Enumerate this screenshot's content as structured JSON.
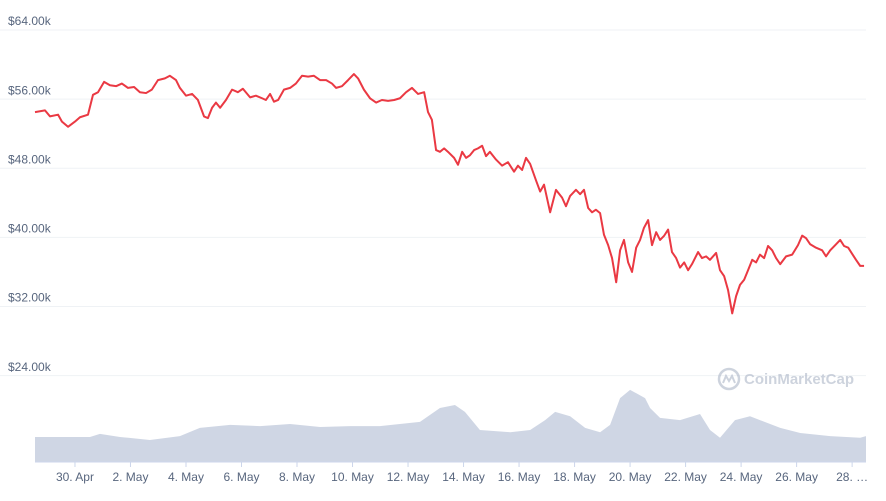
{
  "chart_data": {
    "type": "line",
    "watermark": "CoinMarketCap",
    "xlim": [
      -1.44,
      28.5
    ],
    "xticks": [
      {
        "value": 0,
        "label": "30. Apr"
      },
      {
        "value": 2,
        "label": "2. May"
      },
      {
        "value": 4,
        "label": "4. May"
      },
      {
        "value": 6,
        "label": "6. May"
      },
      {
        "value": 8,
        "label": "8. May"
      },
      {
        "value": 10,
        "label": "10. May"
      },
      {
        "value": 12,
        "label": "12. May"
      },
      {
        "value": 14,
        "label": "14. May"
      },
      {
        "value": 16,
        "label": "16. May"
      },
      {
        "value": 18,
        "label": "18. May"
      },
      {
        "value": 20,
        "label": "20. May"
      },
      {
        "value": 22,
        "label": "22. May"
      },
      {
        "value": 24,
        "label": "24. May"
      },
      {
        "value": 26,
        "label": "26. May"
      },
      {
        "value": 28,
        "label": "28. …"
      }
    ],
    "ylim": [
      14000,
      64000
    ],
    "yticks": [
      {
        "value": 24000,
        "label": "$24.00k"
      },
      {
        "value": 32000,
        "label": "$32.00k"
      },
      {
        "value": 40000,
        "label": "$40.00k"
      },
      {
        "value": 48000,
        "label": "$48.00k"
      },
      {
        "value": 56000,
        "label": "$56.00k"
      },
      {
        "value": 64000,
        "label": "$64.00k"
      }
    ],
    "grid": true,
    "x": [
      -1.44,
      -1.08,
      -0.9,
      -0.61,
      -0.47,
      -0.25,
      0,
      0.18,
      0.47,
      0.65,
      0.83,
      1.05,
      1.26,
      1.48,
      1.69,
      1.91,
      2.13,
      2.34,
      2.56,
      2.77,
      2.99,
      3.24,
      3.42,
      3.64,
      3.78,
      4.0,
      4.22,
      4.43,
      4.65,
      4.79,
      4.94,
      5.08,
      5.23,
      5.44,
      5.66,
      5.87,
      6.05,
      6.31,
      6.52,
      6.74,
      6.88,
      7.03,
      7.17,
      7.32,
      7.53,
      7.75,
      7.96,
      8.18,
      8.4,
      8.61,
      8.83,
      9.05,
      9.26,
      9.41,
      9.62,
      9.84,
      10.05,
      10.2,
      10.41,
      10.63,
      10.85,
      11.06,
      11.28,
      11.5,
      11.71,
      11.93,
      12.14,
      12.36,
      12.58,
      12.72,
      12.86,
      13.01,
      13.15,
      13.3,
      13.44,
      13.66,
      13.8,
      13.95,
      14.09,
      14.23,
      14.38,
      14.52,
      14.67,
      14.81,
      14.95,
      15.17,
      15.39,
      15.6,
      15.82,
      15.96,
      16.11,
      16.25,
      16.4,
      16.61,
      16.76,
      16.9,
      17.12,
      17.33,
      17.55,
      17.69,
      17.84,
      18.05,
      18.2,
      18.34,
      18.49,
      18.63,
      18.77,
      18.92,
      19.06,
      19.21,
      19.35,
      19.5,
      19.64,
      19.78,
      19.93,
      20.07,
      20.22,
      20.36,
      20.5,
      20.65,
      20.79,
      20.94,
      21.08,
      21.23,
      21.37,
      21.51,
      21.66,
      21.8,
      21.95,
      22.09,
      22.23,
      22.45,
      22.59,
      22.74,
      22.88,
      23.1,
      23.24,
      23.39,
      23.53,
      23.68,
      23.82,
      23.96,
      24.11,
      24.25,
      24.4,
      24.54,
      24.68,
      24.83,
      24.97,
      25.12,
      25.26,
      25.41,
      25.62,
      25.84,
      26.05,
      26.2,
      26.34,
      26.49,
      26.7,
      26.92,
      27.06,
      27.21,
      27.42,
      27.57,
      27.71,
      27.86,
      28.0,
      28.14,
      28.29,
      28.43
    ],
    "values": [
      54500,
      54700,
      54000,
      54200,
      53400,
      52800,
      53400,
      53900,
      54200,
      56500,
      56800,
      58000,
      57600,
      57500,
      57800,
      57300,
      57400,
      56800,
      56700,
      57100,
      58200,
      58400,
      58700,
      58200,
      57300,
      56400,
      56600,
      55900,
      54000,
      53800,
      55000,
      55600,
      55000,
      55900,
      57100,
      56800,
      57200,
      56200,
      56400,
      56100,
      55900,
      56600,
      55700,
      55900,
      57100,
      57300,
      57800,
      58700,
      58600,
      58700,
      58200,
      58200,
      57800,
      57300,
      57500,
      58200,
      58900,
      58400,
      57100,
      56100,
      55600,
      55900,
      55800,
      55900,
      56100,
      56800,
      57300,
      56600,
      56800,
      54500,
      53600,
      50100,
      49900,
      50300,
      49900,
      49200,
      48400,
      49900,
      49200,
      49500,
      50100,
      50300,
      50600,
      49400,
      49900,
      49000,
      48300,
      48700,
      47600,
      48300,
      47800,
      49200,
      48500,
      46600,
      45300,
      46100,
      42900,
      45500,
      44600,
      43600,
      44800,
      45500,
      45000,
      45500,
      43400,
      42900,
      43200,
      42800,
      40300,
      39100,
      37600,
      34800,
      38500,
      39700,
      37100,
      36000,
      38800,
      39700,
      41100,
      42000,
      39100,
      40600,
      39700,
      40200,
      40900,
      38300,
      37600,
      36500,
      37100,
      36200,
      36900,
      38300,
      37600,
      37800,
      37400,
      38200,
      36200,
      35500,
      33900,
      31200,
      33200,
      34500,
      35100,
      36200,
      37400,
      37100,
      38000,
      37600,
      39000,
      38500,
      37600,
      36900,
      37800,
      38000,
      39100,
      40200,
      39900,
      39200,
      38800,
      38500,
      37800,
      38500,
      39200,
      39700,
      39000,
      38800,
      38100,
      37400,
      36700,
      36700
    ],
    "color": "#ea3943",
    "volume": {
      "color": "#cfd6e4",
      "ylim": [
        0,
        100
      ],
      "x": [
        -1.44,
        0.54,
        0.9,
        1.62,
        2.7,
        3.78,
        4.5,
        5.59,
        6.67,
        7.75,
        8.83,
        9.91,
        10.99,
        12.43,
        13.15,
        13.69,
        14.05,
        14.59,
        15.68,
        16.4,
        16.94,
        17.3,
        17.84,
        18.38,
        18.92,
        19.28,
        19.64,
        20.0,
        20.54,
        20.72,
        21.08,
        21.8,
        22.52,
        22.88,
        23.24,
        23.78,
        24.32,
        24.68,
        25.41,
        26.13,
        27.21,
        28.29,
        28.5
      ],
      "values": [
        5.8,
        5.8,
        6.5,
        5.8,
        5.1,
        6.0,
        7.9,
        8.6,
        8.3,
        8.8,
        8.1,
        8.3,
        8.3,
        9.3,
        12.5,
        13.2,
        11.6,
        7.4,
        6.9,
        7.4,
        9.7,
        11.6,
        10.6,
        7.9,
        6.9,
        8.6,
        14.8,
        16.7,
        14.8,
        12.5,
        10.2,
        9.7,
        11.1,
        7.4,
        5.6,
        9.7,
        10.6,
        9.7,
        7.9,
        6.7,
        6.0,
        5.6,
        6.0
      ]
    }
  }
}
